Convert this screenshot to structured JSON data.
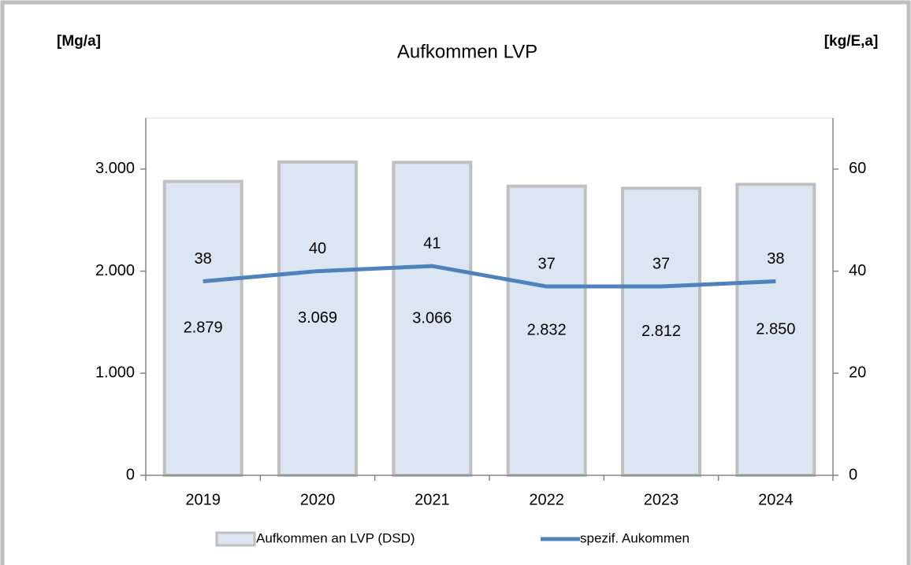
{
  "chart_data": {
    "type": "bar",
    "title": "Aufkommen LVP",
    "y_axis_label": "[Mg/a]",
    "y2_axis_label": "[kg/E,a]",
    "categories": [
      "2019",
      "2020",
      "2021",
      "2022",
      "2023",
      "2024"
    ],
    "series": [
      {
        "name": "Aufkommen an LVP (DSD)",
        "type": "bar",
        "color": "#dce6f2",
        "edge_color": "#bfbfbf",
        "values": [
          2879,
          3069,
          3066,
          2832,
          2812,
          2850
        ],
        "value_labels": [
          "2.879",
          "3.069",
          "3.066",
          "2.832",
          "2.812",
          "2.850"
        ]
      },
      {
        "name": "spezif. Aukommen",
        "type": "line",
        "axis": "y2",
        "color": "#4f81bd",
        "values": [
          38,
          40,
          41,
          37,
          37,
          38
        ]
      }
    ],
    "ylim": [
      0,
      3500
    ],
    "yticks": [
      0,
      {
        "value": 1000,
        "label": "1.000"
      },
      {
        "value": 2000,
        "label": "2.000"
      },
      {
        "value": 3000,
        "label": "3.000"
      }
    ],
    "y2lim": [
      0,
      70
    ],
    "y2ticks": [
      0,
      20,
      40,
      60
    ],
    "legend": "bottom"
  }
}
